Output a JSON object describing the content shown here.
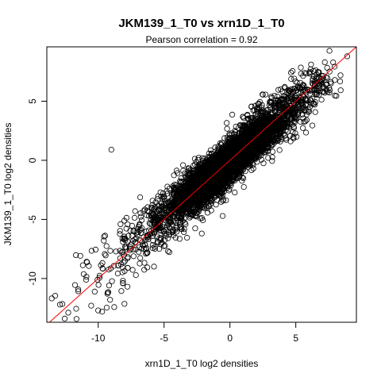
{
  "chart_data": {
    "type": "scatter",
    "title": "JKM139_1_T0 vs xrn1D_1_T0",
    "subtitle": "Pearson correlation =  0.92",
    "xlabel": "xrn1D_1_T0 log2 densities",
    "ylabel": "JKM139_1_T0 log2 densities",
    "xlim": [
      -13.9,
      9.6
    ],
    "ylim": [
      -13.7,
      9.6
    ],
    "xticks": [
      -10,
      -5,
      0,
      5
    ],
    "yticks": [
      -10,
      -5,
      0,
      5
    ],
    "xtick_labels": [
      "-10",
      "-5",
      "0",
      "5"
    ],
    "ytick_labels": [
      "-10",
      "-5",
      "0",
      "5"
    ],
    "grid": false,
    "reference_line": {
      "slope": 1,
      "intercept": 0,
      "color": "#ff0000"
    },
    "point_color": "#000000",
    "points_count_estimate": 6000,
    "notable_points": [
      {
        "x": 8.9,
        "y": 8.8
      },
      {
        "x": 7.2,
        "y": 8.3
      },
      {
        "x": -9.0,
        "y": 0.9
      },
      {
        "x": -12.9,
        "y": -12.2
      },
      {
        "x": -10.0,
        "y": -12.7
      },
      {
        "x": -9.7,
        "y": -12.8
      },
      {
        "x": -9.1,
        "y": -11.8
      }
    ]
  }
}
